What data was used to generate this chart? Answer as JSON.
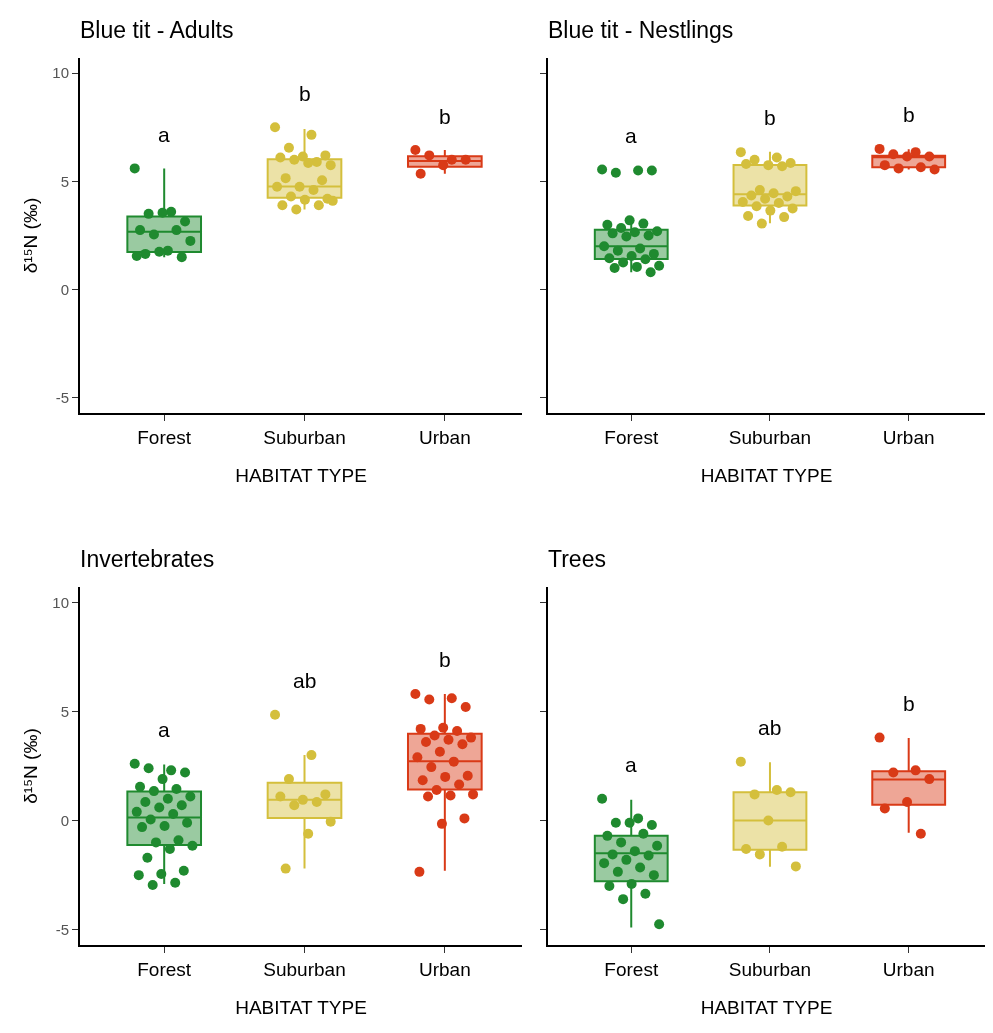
{
  "chart_data": [
    {
      "type": "box",
      "title": "Blue tit - Adults",
      "xlabel": "HABITAT TYPE",
      "ylabel": "δ¹⁵N (‰)",
      "categories": [
        "Forest",
        "Suburban",
        "Urban"
      ],
      "colors": [
        "#1f8a2f",
        "#d4bf3c",
        "#d93a17"
      ],
      "ylim": [
        -5.7,
        10.7
      ],
      "yticks": [
        -5,
        0,
        5,
        10
      ],
      "grid": false,
      "marker": "circle",
      "boxes": [
        {
          "low": 1.5,
          "q1": 1.74,
          "median": 2.67,
          "q3": 3.38,
          "high": 5.6
        },
        {
          "low": 3.7,
          "q1": 4.24,
          "median": 4.76,
          "q3": 6.02,
          "high": 7.42
        },
        {
          "low": 5.35,
          "q1": 5.68,
          "median": 5.94,
          "q3": 6.16,
          "high": 6.45
        }
      ],
      "series": [
        {
          "type": "scatter",
          "colors": [
            "#1f8a2f",
            "#d4bf3c",
            "#d93a17"
          ],
          "values": [
            5.6,
            7.5,
            6.45
          ]
        },
        {
          "type": "scatter",
          "colors": [
            "#1f8a2f",
            "#d4bf3c",
            "#d93a17"
          ],
          "values": [
            3.6,
            7.15,
            6.0
          ]
        },
        {
          "type": "scatter",
          "colors": [
            "#1f8a2f",
            "#d4bf3c",
            "#d93a17"
          ],
          "values": [
            3.5,
            6.55,
            6.2
          ]
        },
        {
          "type": "scatter",
          "colors": [
            "#1f8a2f",
            "#d4bf3c",
            "#d93a17"
          ],
          "values": [
            3.15,
            6.2,
            6.0
          ]
        },
        {
          "type": "scatter",
          "colors": [
            "#1f8a2f",
            "#d4bf3c",
            "#d93a17"
          ],
          "values": [
            3.55,
            6.15,
            5.75
          ]
        },
        {
          "type": "scatter",
          "colors": [
            "#1f8a2f",
            "#d4bf3c",
            "#d93a17"
          ],
          "values": [
            2.75,
            6.1,
            5.35
          ]
        },
        {
          "type": "scatter",
          "colors": [
            "#1f8a2f",
            "#d4bf3c",
            null
          ],
          "values": [
            2.75,
            5.9,
            null
          ]
        },
        {
          "type": "scatter",
          "colors": [
            "#1f8a2f",
            "#d4bf3c",
            null
          ],
          "values": [
            2.55,
            6.0,
            null
          ]
        },
        {
          "type": "scatter",
          "colors": [
            "#1f8a2f",
            "#d4bf3c",
            null
          ],
          "values": [
            2.25,
            5.75,
            null
          ]
        },
        {
          "type": "scatter",
          "colors": [
            "#1f8a2f",
            "#d4bf3c",
            null
          ],
          "values": [
            1.8,
            5.85,
            null
          ]
        },
        {
          "type": "scatter",
          "colors": [
            "#1f8a2f",
            "#d4bf3c",
            null
          ],
          "values": [
            1.65,
            5.15,
            null
          ]
        },
        {
          "type": "scatter",
          "colors": [
            "#1f8a2f",
            "#d4bf3c",
            null
          ],
          "values": [
            1.5,
            5.05,
            null
          ]
        },
        {
          "type": "scatter",
          "colors": [
            "#1f8a2f",
            "#d4bf3c",
            null
          ],
          "values": [
            1.75,
            4.75,
            null
          ]
        },
        {
          "type": "scatter",
          "colors": [
            "#1f8a2f",
            "#d4bf3c",
            null
          ],
          "values": [
            1.55,
            4.75,
            null
          ]
        },
        {
          "type": "scatter",
          "color": "#d4bf3c",
          "values": [
            null,
            4.6,
            null
          ]
        },
        {
          "type": "scatter",
          "color": "#d4bf3c",
          "values": [
            null,
            4.3,
            null
          ]
        },
        {
          "type": "scatter",
          "color": "#d4bf3c",
          "values": [
            null,
            4.2,
            null
          ]
        },
        {
          "type": "scatter",
          "color": "#d4bf3c",
          "values": [
            null,
            4.15,
            null
          ]
        },
        {
          "type": "scatter",
          "color": "#d4bf3c",
          "values": [
            null,
            3.9,
            null
          ]
        },
        {
          "type": "scatter",
          "color": "#d4bf3c",
          "values": [
            null,
            3.9,
            null
          ]
        },
        {
          "type": "scatter",
          "color": "#d4bf3c",
          "values": [
            null,
            3.7,
            null
          ]
        },
        {
          "type": "scatter",
          "color": "#d4bf3c",
          "values": [
            null,
            4.1,
            null
          ]
        }
      ],
      "annotations": [
        "a",
        "b",
        "b"
      ]
    },
    {
      "type": "box",
      "title": "Blue tit - Nestlings",
      "xlabel": "HABITAT TYPE",
      "categories": [
        "Forest",
        "Suburban",
        "Urban"
      ],
      "colors": [
        "#1f8a2f",
        "#d4bf3c",
        "#d93a17"
      ],
      "ylim": [
        -5.7,
        10.7
      ],
      "yticks": [
        -5,
        0,
        5,
        10
      ],
      "grid": false,
      "marker": "circle",
      "tick_labels": "x",
      "boxes": [
        {
          "low": 0.8,
          "q1": 1.41,
          "median": 2.0,
          "q3": 2.76,
          "high": 3.2
        },
        {
          "low": 3.07,
          "q1": 3.89,
          "median": 4.41,
          "q3": 5.76,
          "high": 6.37
        },
        {
          "low": 5.55,
          "q1": 5.65,
          "median": 6.11,
          "q3": 6.19,
          "high": 6.48
        }
      ],
      "series": [
        {
          "type": "scatter",
          "colors": [
            "#1f8a2f",
            "#d4bf3c",
            "#d93a17"
          ],
          "values": [
            5.55,
            6.35,
            6.5
          ]
        },
        {
          "type": "scatter",
          "colors": [
            "#1f8a2f",
            "#d4bf3c",
            "#d93a17"
          ],
          "values": [
            5.5,
            6.1,
            6.35
          ]
        },
        {
          "type": "scatter",
          "colors": [
            "#1f8a2f",
            "#d4bf3c",
            "#d93a17"
          ],
          "values": [
            5.4,
            6.0,
            6.25
          ]
        },
        {
          "type": "scatter",
          "colors": [
            "#1f8a2f",
            "#d4bf3c",
            "#d93a17"
          ],
          "values": [
            5.5,
            5.85,
            6.15
          ]
        },
        {
          "type": "scatter",
          "colors": [
            "#1f8a2f",
            "#d4bf3c",
            "#d93a17"
          ],
          "values": [
            3.2,
            5.75,
            6.15
          ]
        },
        {
          "type": "scatter",
          "colors": [
            "#1f8a2f",
            "#d4bf3c",
            "#d93a17"
          ],
          "values": [
            3.0,
            5.8,
            5.75
          ]
        },
        {
          "type": "scatter",
          "colors": [
            "#1f8a2f",
            "#d4bf3c",
            "#d93a17"
          ],
          "values": [
            3.05,
            5.7,
            5.65
          ]
        },
        {
          "type": "scatter",
          "colors": [
            "#1f8a2f",
            "#d4bf3c",
            "#d93a17"
          ],
          "values": [
            2.85,
            4.6,
            5.6
          ]
        },
        {
          "type": "scatter",
          "colors": [
            "#1f8a2f",
            "#d4bf3c",
            "#d93a17"
          ],
          "values": [
            2.7,
            4.55,
            5.55
          ]
        },
        {
          "type": "scatter",
          "colors": [
            "#1f8a2f",
            "#d4bf3c",
            null
          ],
          "values": [
            2.65,
            4.45,
            null
          ]
        },
        {
          "type": "scatter",
          "colors": [
            "#1f8a2f",
            "#d4bf3c",
            null
          ],
          "values": [
            2.6,
            4.35,
            null
          ]
        },
        {
          "type": "scatter",
          "colors": [
            "#1f8a2f",
            "#d4bf3c",
            null
          ],
          "values": [
            2.5,
            4.3,
            null
          ]
        },
        {
          "type": "scatter",
          "colors": [
            "#1f8a2f",
            "#d4bf3c",
            null
          ],
          "values": [
            2.45,
            4.2,
            null
          ]
        },
        {
          "type": "scatter",
          "colors": [
            "#1f8a2f",
            "#d4bf3c",
            null
          ],
          "values": [
            2.0,
            4.05,
            null
          ]
        },
        {
          "type": "scatter",
          "colors": [
            "#1f8a2f",
            "#d4bf3c",
            null
          ],
          "values": [
            1.9,
            4.0,
            null
          ]
        },
        {
          "type": "scatter",
          "colors": [
            "#1f8a2f",
            "#d4bf3c",
            null
          ],
          "values": [
            1.8,
            3.85,
            null
          ]
        },
        {
          "type": "scatter",
          "colors": [
            "#1f8a2f",
            "#d4bf3c",
            null
          ],
          "values": [
            1.65,
            3.75,
            null
          ]
        },
        {
          "type": "scatter",
          "colors": [
            "#1f8a2f",
            "#d4bf3c",
            null
          ],
          "values": [
            1.55,
            3.65,
            null
          ]
        },
        {
          "type": "scatter",
          "colors": [
            "#1f8a2f",
            "#d4bf3c",
            null
          ],
          "values": [
            1.45,
            3.4,
            null
          ]
        },
        {
          "type": "scatter",
          "colors": [
            "#1f8a2f",
            "#d4bf3c",
            null
          ],
          "values": [
            1.4,
            3.35,
            null
          ]
        },
        {
          "type": "scatter",
          "colors": [
            "#1f8a2f",
            "#d4bf3c",
            null
          ],
          "values": [
            1.25,
            3.05,
            null
          ]
        },
        {
          "type": "scatter",
          "color": "#1f8a2f",
          "values": [
            1.1,
            null,
            null
          ]
        },
        {
          "type": "scatter",
          "color": "#1f8a2f",
          "values": [
            1.05,
            null,
            null
          ]
        },
        {
          "type": "scatter",
          "color": "#1f8a2f",
          "values": [
            1.0,
            null,
            null
          ]
        },
        {
          "type": "scatter",
          "color": "#1f8a2f",
          "values": [
            0.8,
            null,
            null
          ]
        }
      ],
      "annotations": [
        "a",
        "b",
        "b"
      ]
    },
    {
      "type": "box",
      "title": "Invertebrates",
      "xlabel": "HABITAT TYPE",
      "ylabel": "δ¹⁵N (‰)",
      "categories": [
        "Forest",
        "Suburban",
        "Urban"
      ],
      "colors": [
        "#1f8a2f",
        "#d4bf3c",
        "#d93a17"
      ],
      "ylim": [
        -5.7,
        10.7
      ],
      "yticks": [
        -5,
        0,
        5,
        10
      ],
      "grid": false,
      "marker": "circle",
      "boxes": [
        {
          "low": -2.9,
          "q1": -1.12,
          "median": 0.14,
          "q3": 1.33,
          "high": 2.57
        },
        {
          "low": -2.19,
          "q1": 0.12,
          "median": 0.95,
          "q3": 1.73,
          "high": 3.0
        },
        {
          "low": -2.3,
          "q1": 1.42,
          "median": 2.72,
          "q3": 3.98,
          "high": 5.8
        }
      ],
      "series": [
        {
          "type": "scatter",
          "colors": [
            "#1f8a2f",
            "#d4bf3c",
            "#d93a17"
          ],
          "values": [
            2.6,
            4.85,
            5.8
          ]
        },
        {
          "type": "scatter",
          "colors": [
            "#1f8a2f",
            "#d4bf3c",
            "#d93a17"
          ],
          "values": [
            2.3,
            3.0,
            5.6
          ]
        },
        {
          "type": "scatter",
          "colors": [
            "#1f8a2f",
            "#d4bf3c",
            "#d93a17"
          ],
          "values": [
            2.4,
            1.9,
            5.55
          ]
        },
        {
          "type": "scatter",
          "colors": [
            "#1f8a2f",
            "#d4bf3c",
            "#d93a17"
          ],
          "values": [
            2.2,
            1.2,
            5.2
          ]
        },
        {
          "type": "scatter",
          "colors": [
            "#1f8a2f",
            "#d4bf3c",
            "#d93a17"
          ],
          "values": [
            1.9,
            0.95,
            4.25
          ]
        },
        {
          "type": "scatter",
          "colors": [
            "#1f8a2f",
            "#d4bf3c",
            "#d93a17"
          ],
          "values": [
            1.55,
            1.1,
            4.2
          ]
        },
        {
          "type": "scatter",
          "colors": [
            "#1f8a2f",
            "#d4bf3c",
            "#d93a17"
          ],
          "values": [
            1.45,
            0.85,
            4.1
          ]
        },
        {
          "type": "scatter",
          "colors": [
            "#1f8a2f",
            "#d4bf3c",
            "#d93a17"
          ],
          "values": [
            1.35,
            0.7,
            3.9
          ]
        },
        {
          "type": "scatter",
          "colors": [
            "#1f8a2f",
            "#d4bf3c",
            "#d93a17"
          ],
          "values": [
            1.1,
            -0.05,
            3.8
          ]
        },
        {
          "type": "scatter",
          "colors": [
            "#1f8a2f",
            "#d4bf3c",
            "#d93a17"
          ],
          "values": [
            1.0,
            -0.6,
            3.7
          ]
        },
        {
          "type": "scatter",
          "colors": [
            "#1f8a2f",
            "#d4bf3c",
            "#d93a17"
          ],
          "values": [
            0.85,
            -2.2,
            3.6
          ]
        },
        {
          "type": "scatter",
          "colors": [
            "#1f8a2f",
            null,
            "#d93a17"
          ],
          "values": [
            0.7,
            null,
            3.5
          ]
        },
        {
          "type": "scatter",
          "colors": [
            "#1f8a2f",
            null,
            "#d93a17"
          ],
          "values": [
            0.6,
            null,
            3.15
          ]
        },
        {
          "type": "scatter",
          "colors": [
            "#1f8a2f",
            null,
            "#d93a17"
          ],
          "values": [
            0.4,
            null,
            2.9
          ]
        },
        {
          "type": "scatter",
          "colors": [
            "#1f8a2f",
            null,
            "#d93a17"
          ],
          "values": [
            0.3,
            null,
            2.7
          ]
        },
        {
          "type": "scatter",
          "colors": [
            "#1f8a2f",
            null,
            "#d93a17"
          ],
          "values": [
            0.05,
            null,
            2.45
          ]
        },
        {
          "type": "scatter",
          "colors": [
            "#1f8a2f",
            null,
            "#d93a17"
          ],
          "values": [
            -0.1,
            null,
            2.05
          ]
        },
        {
          "type": "scatter",
          "colors": [
            "#1f8a2f",
            null,
            "#d93a17"
          ],
          "values": [
            -0.25,
            null,
            2.0
          ]
        },
        {
          "type": "scatter",
          "colors": [
            "#1f8a2f",
            null,
            "#d93a17"
          ],
          "values": [
            -0.3,
            null,
            1.85
          ]
        },
        {
          "type": "scatter",
          "colors": [
            "#1f8a2f",
            null,
            "#d93a17"
          ],
          "values": [
            -0.9,
            null,
            1.65
          ]
        },
        {
          "type": "scatter",
          "colors": [
            "#1f8a2f",
            null,
            "#d93a17"
          ],
          "values": [
            -1.0,
            null,
            1.4
          ]
        },
        {
          "type": "scatter",
          "colors": [
            "#1f8a2f",
            null,
            "#d93a17"
          ],
          "values": [
            -1.15,
            null,
            1.2
          ]
        },
        {
          "type": "scatter",
          "colors": [
            "#1f8a2f",
            null,
            "#d93a17"
          ],
          "values": [
            -1.3,
            null,
            1.15
          ]
        },
        {
          "type": "scatter",
          "colors": [
            "#1f8a2f",
            null,
            "#d93a17"
          ],
          "values": [
            -1.7,
            null,
            1.1
          ]
        },
        {
          "type": "scatter",
          "colors": [
            "#1f8a2f",
            null,
            "#d93a17"
          ],
          "values": [
            -2.3,
            null,
            0.1
          ]
        },
        {
          "type": "scatter",
          "colors": [
            "#1f8a2f",
            null,
            "#d93a17"
          ],
          "values": [
            -2.45,
            null,
            -0.15
          ]
        },
        {
          "type": "scatter",
          "colors": [
            "#1f8a2f",
            null,
            "#d93a17"
          ],
          "values": [
            -2.5,
            null,
            -2.35
          ]
        },
        {
          "type": "scatter",
          "color": "#1f8a2f",
          "values": [
            -2.85,
            null,
            null
          ]
        },
        {
          "type": "scatter",
          "color": "#1f8a2f",
          "values": [
            -2.95,
            null,
            null
          ]
        }
      ],
      "annotations": [
        "a",
        "ab",
        "b"
      ]
    },
    {
      "type": "box",
      "title": "Trees",
      "xlabel": "HABITAT TYPE",
      "categories": [
        "Forest",
        "Suburban",
        "Urban"
      ],
      "colors": [
        "#1f8a2f",
        "#d4bf3c",
        "#d93a17"
      ],
      "ylim": [
        -5.7,
        10.7
      ],
      "yticks": [
        -5,
        0,
        5,
        10
      ],
      "grid": false,
      "marker": "circle",
      "tick_labels": "x",
      "boxes": [
        {
          "low": -4.9,
          "q1": -2.78,
          "median": -1.5,
          "q3": -0.7,
          "high": 0.95
        },
        {
          "low": -2.11,
          "q1": -1.34,
          "median": 0.0,
          "q3": 1.3,
          "high": 2.67
        },
        {
          "low": -0.56,
          "q1": 0.72,
          "median": 1.88,
          "q3": 2.26,
          "high": 3.78
        }
      ],
      "series": [
        {
          "type": "scatter",
          "colors": [
            "#1f8a2f",
            "#d4bf3c",
            "#d93a17"
          ],
          "values": [
            1.0,
            2.7,
            3.8
          ]
        },
        {
          "type": "scatter",
          "colors": [
            "#1f8a2f",
            "#d4bf3c",
            "#d93a17"
          ],
          "values": [
            0.1,
            1.4,
            2.3
          ]
        },
        {
          "type": "scatter",
          "colors": [
            "#1f8a2f",
            "#d4bf3c",
            "#d93a17"
          ],
          "values": [
            -0.1,
            1.2,
            2.2
          ]
        },
        {
          "type": "scatter",
          "colors": [
            "#1f8a2f",
            "#d4bf3c",
            "#d93a17"
          ],
          "values": [
            -0.2,
            1.3,
            1.9
          ]
        },
        {
          "type": "scatter",
          "colors": [
            "#1f8a2f",
            "#d4bf3c",
            "#d93a17"
          ],
          "values": [
            -0.1,
            0.0,
            0.85
          ]
        },
        {
          "type": "scatter",
          "colors": [
            "#1f8a2f",
            "#d4bf3c",
            "#d93a17"
          ],
          "values": [
            -0.7,
            -1.3,
            0.55
          ]
        },
        {
          "type": "scatter",
          "colors": [
            "#1f8a2f",
            "#d4bf3c",
            "#d93a17"
          ],
          "values": [
            -0.6,
            -1.2,
            -0.6
          ]
        },
        {
          "type": "scatter",
          "colors": [
            "#1f8a2f",
            "#d4bf3c",
            null
          ],
          "values": [
            -1.0,
            -1.55,
            null
          ]
        },
        {
          "type": "scatter",
          "colors": [
            "#1f8a2f",
            "#d4bf3c",
            null
          ],
          "values": [
            -1.15,
            -2.1,
            null
          ]
        },
        {
          "type": "scatter",
          "color": "#1f8a2f",
          "values": [
            -1.4,
            null,
            null
          ]
        },
        {
          "type": "scatter",
          "color": "#1f8a2f",
          "values": [
            -1.55,
            null,
            null
          ]
        },
        {
          "type": "scatter",
          "color": "#1f8a2f",
          "values": [
            -1.6,
            null,
            null
          ]
        },
        {
          "type": "scatter",
          "color": "#1f8a2f",
          "values": [
            -1.8,
            null,
            null
          ]
        },
        {
          "type": "scatter",
          "color": "#1f8a2f",
          "values": [
            -1.95,
            null,
            null
          ]
        },
        {
          "type": "scatter",
          "color": "#1f8a2f",
          "values": [
            -2.15,
            null,
            null
          ]
        },
        {
          "type": "scatter",
          "color": "#1f8a2f",
          "values": [
            -2.35,
            null,
            null
          ]
        },
        {
          "type": "scatter",
          "color": "#1f8a2f",
          "values": [
            -2.5,
            null,
            null
          ]
        },
        {
          "type": "scatter",
          "color": "#1f8a2f",
          "values": [
            -2.9,
            null,
            null
          ]
        },
        {
          "type": "scatter",
          "color": "#1f8a2f",
          "values": [
            -3.0,
            null,
            null
          ]
        },
        {
          "type": "scatter",
          "color": "#1f8a2f",
          "values": [
            -3.35,
            null,
            null
          ]
        },
        {
          "type": "scatter",
          "color": "#1f8a2f",
          "values": [
            -3.6,
            null,
            null
          ]
        },
        {
          "type": "scatter",
          "color": "#1f8a2f",
          "values": [
            -4.75,
            null,
            null
          ]
        }
      ],
      "annotations": [
        "a",
        "ab",
        "b"
      ]
    }
  ]
}
